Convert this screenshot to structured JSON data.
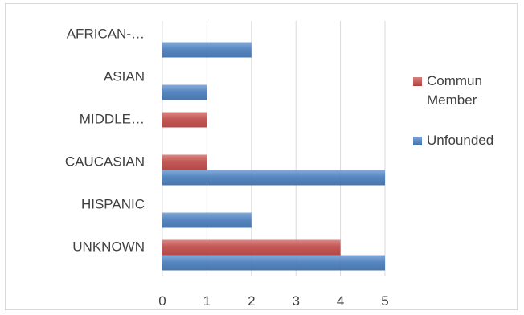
{
  "chart_data": {
    "type": "bar",
    "orientation": "horizontal",
    "categories": [
      "AFRICAN-…",
      "ASIAN",
      "MIDDLE…",
      "CAUCASIAN",
      "HISPANIC",
      "UNKNOWN"
    ],
    "series": [
      {
        "name": "Commun Member",
        "name_lines": [
          "Commun",
          "Member"
        ],
        "color": "#c0504d",
        "values": [
          0,
          0,
          1,
          1,
          0,
          4
        ]
      },
      {
        "name": "Unfounded",
        "name_lines": [
          "Unfounded"
        ],
        "color": "#4f81bd",
        "values": [
          2,
          1,
          0,
          5,
          2,
          5
        ]
      }
    ],
    "x_ticks": [
      0,
      1,
      2,
      3,
      4,
      5
    ],
    "xlim": [
      0,
      5
    ],
    "grid": true,
    "legend_position": "right"
  }
}
